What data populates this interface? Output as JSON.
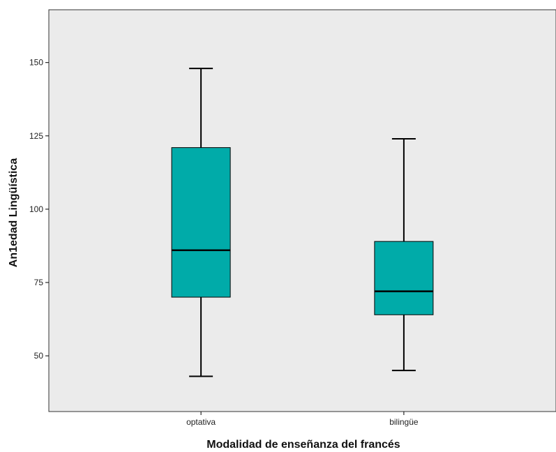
{
  "chart_data": {
    "type": "boxplot",
    "title": "",
    "xlabel": "Modalidad de enseñanza del francés",
    "ylabel": "An1edad Lingüística",
    "categories": [
      "optativa",
      "bilingüe"
    ],
    "boxes": [
      {
        "category": "optativa",
        "min": 43,
        "q1": 70,
        "median": 86,
        "q3": 121,
        "max": 148
      },
      {
        "category": "bilingüe",
        "min": 45,
        "q1": 64,
        "median": 72,
        "q3": 89,
        "max": 124
      }
    ],
    "ylim": [
      31,
      168
    ],
    "yticks": [
      50,
      75,
      100,
      125,
      150
    ],
    "ytick_labels": [
      "50",
      "75",
      "100",
      "125",
      "150"
    ],
    "grid": false,
    "colors": {
      "plot_background": "#ebebeb",
      "box_fill": "#00aba9",
      "line": "#000000"
    }
  }
}
